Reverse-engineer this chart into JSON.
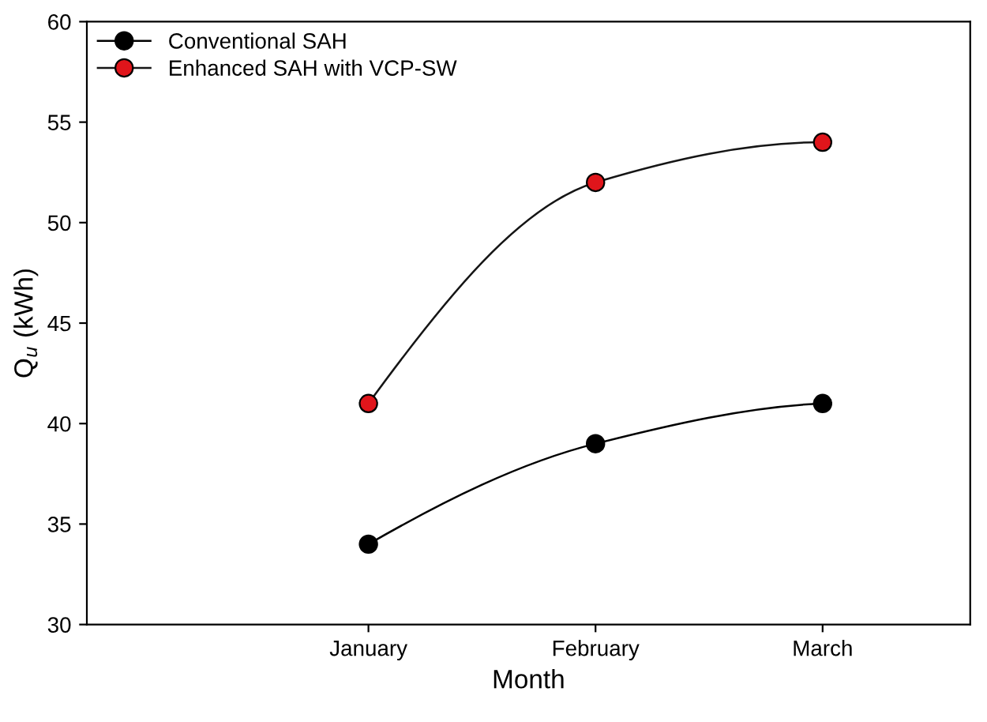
{
  "chart_data": {
    "type": "line",
    "xlabel": "Month",
    "ylabel": "Q$_{u}$ (kWh)",
    "categories": [
      "January",
      "February",
      "March"
    ],
    "series": [
      {
        "name": "Conventional SAH",
        "color": "#000000",
        "values": [
          34,
          39,
          41
        ]
      },
      {
        "name": "Enhanced SAH with VCP-SW",
        "color": "#151515",
        "colors": [
          "#e0151b",
          "#e0151b",
          "#e0151b"
        ],
        "values": [
          41,
          52,
          54
        ]
      }
    ],
    "ylim": [
      30,
      60
    ],
    "yticks": [
      30,
      35,
      40,
      45,
      50,
      55,
      60
    ],
    "grid": false,
    "legend": "top left",
    "marker": "circle",
    "line_style": "solid"
  }
}
